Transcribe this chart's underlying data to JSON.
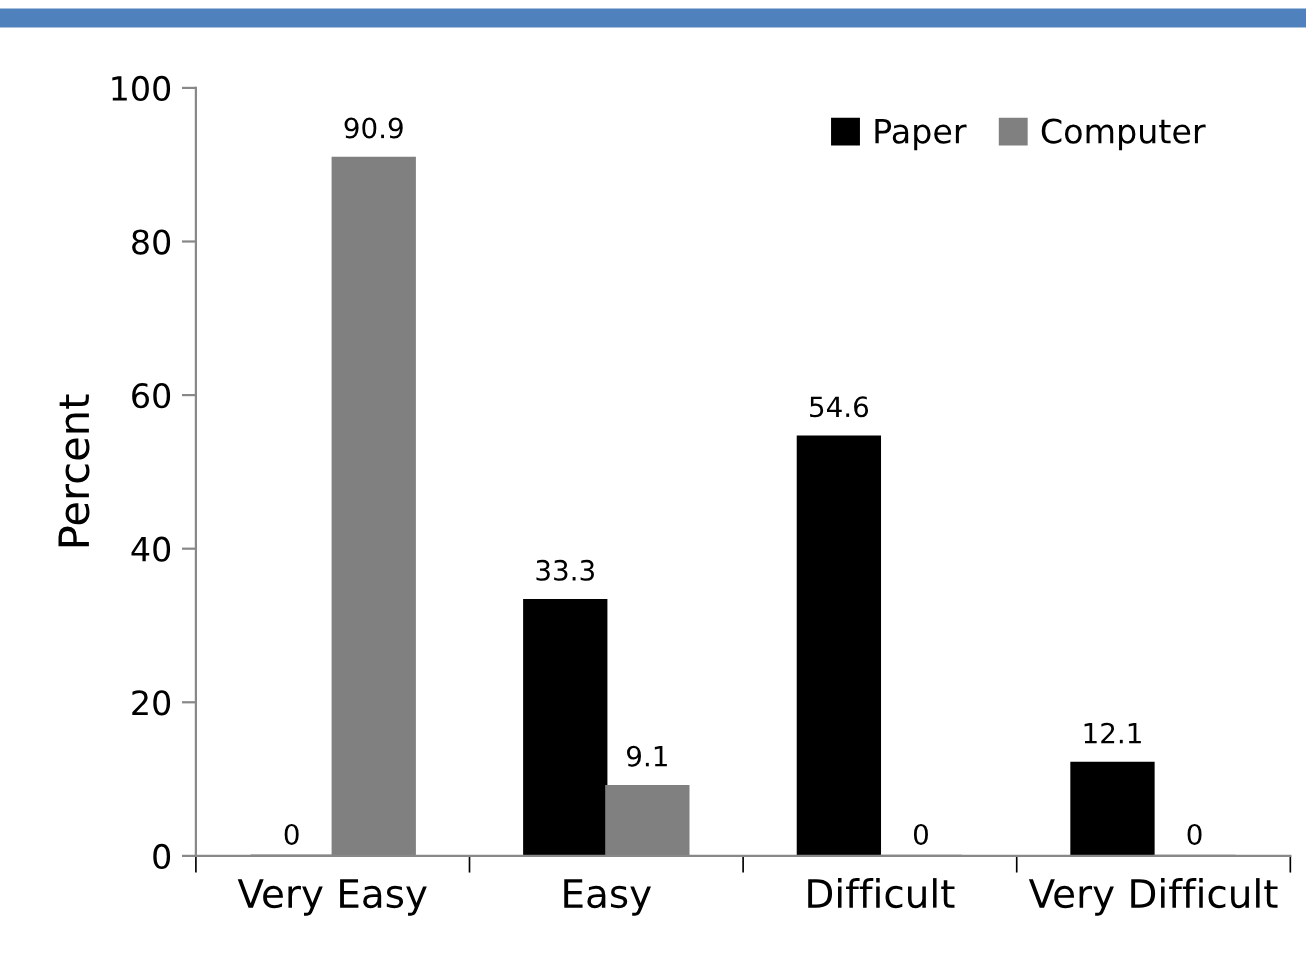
{
  "chart_data": {
    "type": "bar",
    "ylabel": "Percent",
    "categories": [
      "Very Easy",
      "Easy",
      "Difficult",
      "Very Difficult"
    ],
    "series": [
      {
        "name": "Paper",
        "color": "#000000",
        "values": [
          0,
          33.3,
          54.6,
          12.1
        ]
      },
      {
        "name": "Computer",
        "color": "#808080",
        "values": [
          90.9,
          9.1,
          0,
          0
        ]
      }
    ],
    "ylim": [
      0,
      100
    ],
    "yticks": [
      0,
      20,
      40,
      60,
      80,
      100
    ],
    "grid": false,
    "legend": "top right",
    "data_labels": true
  }
}
